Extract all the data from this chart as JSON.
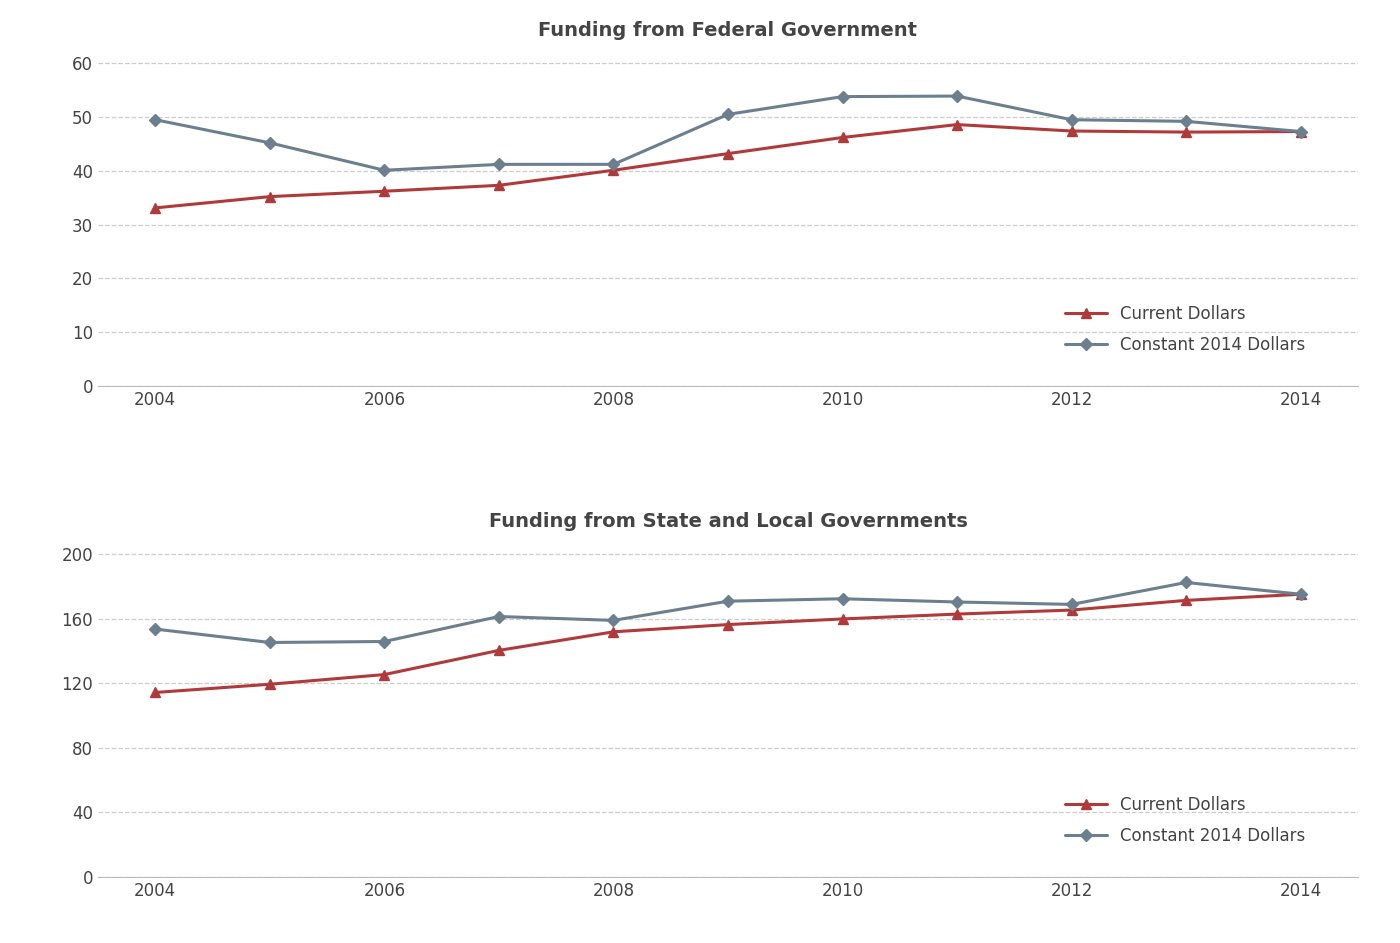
{
  "years": [
    2004,
    2005,
    2006,
    2007,
    2008,
    2009,
    2010,
    2011,
    2012,
    2013,
    2014
  ],
  "federal_current": [
    33.1,
    35.2,
    36.2,
    37.3,
    40.1,
    43.2,
    46.2,
    48.6,
    47.4,
    47.2,
    47.3
  ],
  "federal_constant": [
    49.5,
    45.2,
    40.1,
    41.2,
    41.2,
    50.5,
    53.8,
    53.9,
    49.5,
    49.2,
    47.3
  ],
  "state_current": [
    114.4,
    119.5,
    125.5,
    140.5,
    152.0,
    156.5,
    160.0,
    163.0,
    165.5,
    171.5,
    175.3
  ],
  "state_constant": [
    153.7,
    145.4,
    146.0,
    161.5,
    159.1,
    171.0,
    172.5,
    170.5,
    169.0,
    182.6,
    175.3
  ],
  "title_federal": "Funding from Federal Government",
  "title_state": "Funding from State and Local Governments",
  "current_color": "#b03a3a",
  "constant_color": "#6b7f8e",
  "legend_current": "Current Dollars",
  "legend_constant": "Constant 2014 Dollars",
  "federal_ylim": [
    0,
    63
  ],
  "federal_yticks": [
    0,
    10,
    20,
    30,
    40,
    50,
    60
  ],
  "state_ylim": [
    0,
    210
  ],
  "state_yticks": [
    0,
    40,
    80,
    120,
    160,
    200
  ],
  "xticks": [
    2004,
    2006,
    2008,
    2010,
    2012,
    2014
  ],
  "title_fontsize": 14,
  "tick_fontsize": 12,
  "legend_fontsize": 12,
  "line_width": 2.2,
  "marker_size": 7,
  "background_color": "#ffffff",
  "grid_color": "#cccccc",
  "spine_color": "#bbbbbb",
  "text_color": "#444444"
}
